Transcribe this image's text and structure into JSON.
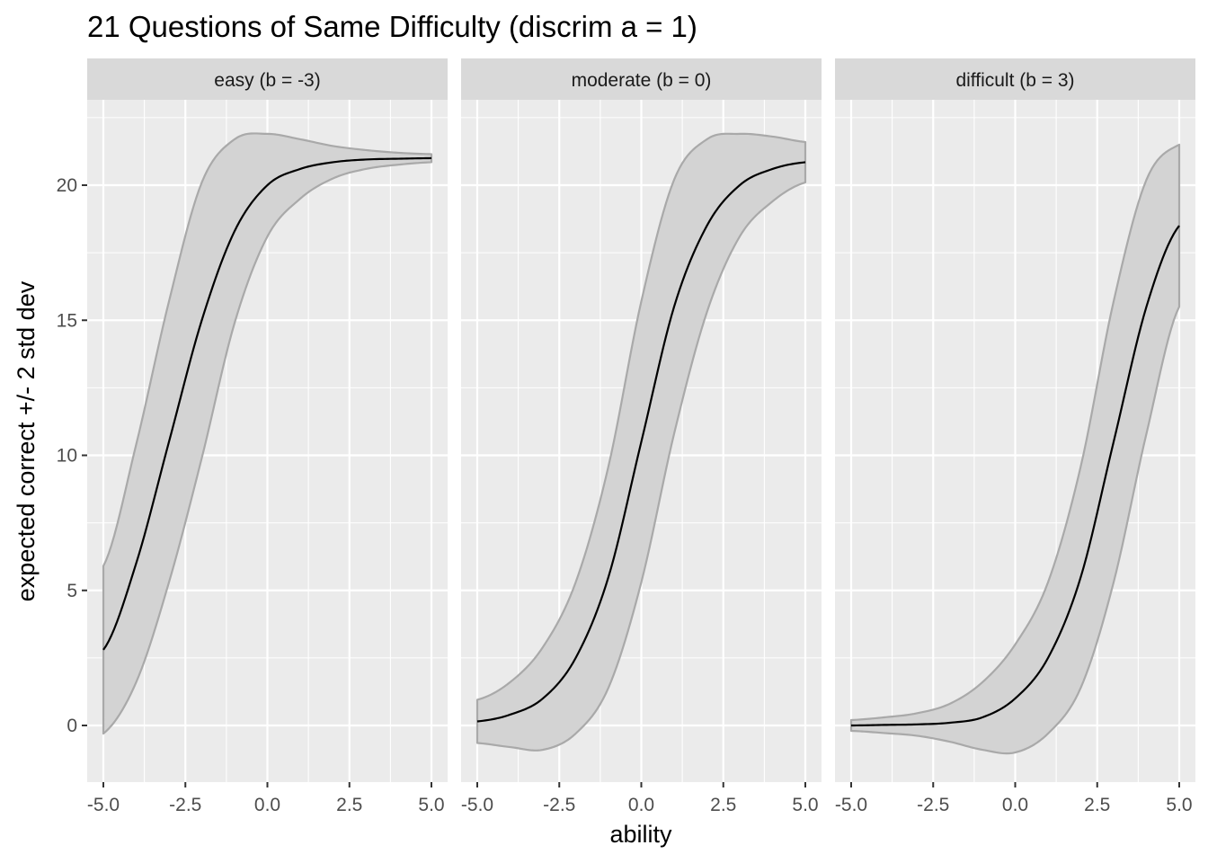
{
  "chart_data": {
    "type": "line",
    "title": "21 Questions of Same Difficulty (discrim a = 1)",
    "xlabel": "ability",
    "ylabel": "expected correct +/- 2 std dev",
    "xlim": [
      -5,
      5
    ],
    "ylim": [
      -2.1,
      23
    ],
    "x_ticks": [
      -5,
      -2.5,
      0,
      2.5,
      5
    ],
    "x_tick_labels": [
      "-5.0",
      "-2.5",
      "0.0",
      "2.5",
      "5.0"
    ],
    "y_ticks": [
      0,
      5,
      10,
      15,
      20
    ],
    "y_tick_labels": [
      "0",
      "5",
      "10",
      "15",
      "20"
    ],
    "grid": true,
    "n_questions": 21,
    "discrimination": 1,
    "colors": {
      "panel_bg": "#ebebeb",
      "grid": "#ffffff",
      "strip_bg": "#d9d9d9",
      "ribbon_fill": "#d3d3d3",
      "ribbon_stroke": "#a9a9a9",
      "line": "#000000"
    },
    "panels": [
      {
        "label": "easy (b = -3)",
        "difficulty": -3,
        "x": [
          -5,
          -4,
          -3,
          -2,
          -1,
          0,
          1,
          2,
          3,
          4,
          5
        ],
        "expected": [
          2.8,
          6.0,
          10.5,
          15.0,
          18.3,
          20.0,
          20.6,
          20.85,
          20.95,
          20.98,
          21.0
        ],
        "upper": [
          5.9,
          10.4,
          15.7,
          20.1,
          21.7,
          21.9,
          21.7,
          21.45,
          21.3,
          21.2,
          21.15
        ],
        "lower": [
          -0.3,
          1.6,
          5.3,
          9.9,
          14.9,
          18.1,
          19.5,
          20.25,
          20.6,
          20.76,
          20.85
        ]
      },
      {
        "label": "moderate (b = 0)",
        "difficulty": 0,
        "x": [
          -5,
          -4,
          -3,
          -2,
          -1,
          0,
          1,
          2,
          3,
          4,
          5
        ],
        "expected": [
          0.15,
          0.4,
          1.0,
          2.5,
          5.5,
          10.5,
          15.5,
          18.5,
          20.0,
          20.6,
          20.85
        ],
        "upper": [
          0.95,
          1.6,
          2.9,
          5.3,
          9.6,
          15.7,
          20.2,
          21.7,
          21.9,
          21.8,
          21.6
        ],
        "lower": [
          -0.65,
          -0.8,
          -0.9,
          -0.3,
          1.4,
          5.3,
          10.8,
          15.3,
          18.1,
          19.4,
          20.1
        ]
      },
      {
        "label": "difficult (b = 3)",
        "difficulty": 3,
        "x": [
          -5,
          -4,
          -3,
          -2,
          -1,
          0,
          1,
          2,
          3,
          4,
          5
        ],
        "expected": [
          0.0,
          0.02,
          0.04,
          0.1,
          0.3,
          1.0,
          2.5,
          5.5,
          10.5,
          15.5,
          18.5
        ],
        "upper": [
          0.2,
          0.3,
          0.45,
          0.8,
          1.6,
          3.0,
          5.3,
          9.6,
          15.7,
          20.2,
          21.5
        ],
        "lower": [
          -0.2,
          -0.28,
          -0.38,
          -0.6,
          -0.9,
          -1.0,
          -0.3,
          1.4,
          5.3,
          10.8,
          15.5
        ]
      }
    ]
  }
}
